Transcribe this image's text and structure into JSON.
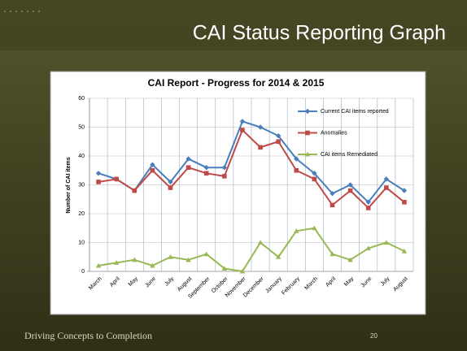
{
  "slide": {
    "title": "CAI Status Reporting Graph",
    "footer": "Driving Concepts to Completion",
    "page_number": 20
  },
  "chart_data": {
    "type": "line",
    "title": "CAI Report - Progress for 2014 & 2015",
    "y_label": "Number of CAI items",
    "categories": [
      "March",
      "April",
      "May",
      "June",
      "July",
      "August",
      "September",
      "October",
      "November",
      "December",
      "January",
      "February",
      "March",
      "April",
      "May",
      "June",
      "July",
      "August"
    ],
    "series": [
      {
        "name": "Current CAI items reported",
        "color": "#4a7ebb",
        "marker": "diamond",
        "values": [
          34,
          32,
          28,
          37,
          31,
          39,
          36,
          36,
          52,
          50,
          47,
          39,
          34,
          27,
          30,
          24,
          32,
          28
        ]
      },
      {
        "name": "Anomalies",
        "color": "#be4b48",
        "marker": "square",
        "values": [
          31,
          32,
          28,
          35,
          29,
          36,
          34,
          33,
          49,
          43,
          45,
          35,
          32,
          23,
          28,
          22,
          29,
          24
        ]
      },
      {
        "name": "CAI items Remediated",
        "color": "#98b954",
        "marker": "triangle",
        "values": [
          2,
          3,
          4,
          2,
          5,
          4,
          6,
          1,
          0,
          10,
          5,
          14,
          15,
          6,
          4,
          8,
          10,
          7
        ]
      }
    ],
    "ylim": [
      0,
      60
    ],
    "yticks": [
      0,
      10,
      20,
      30,
      40,
      50,
      60
    ],
    "grid": true,
    "legend": "upper-right"
  }
}
